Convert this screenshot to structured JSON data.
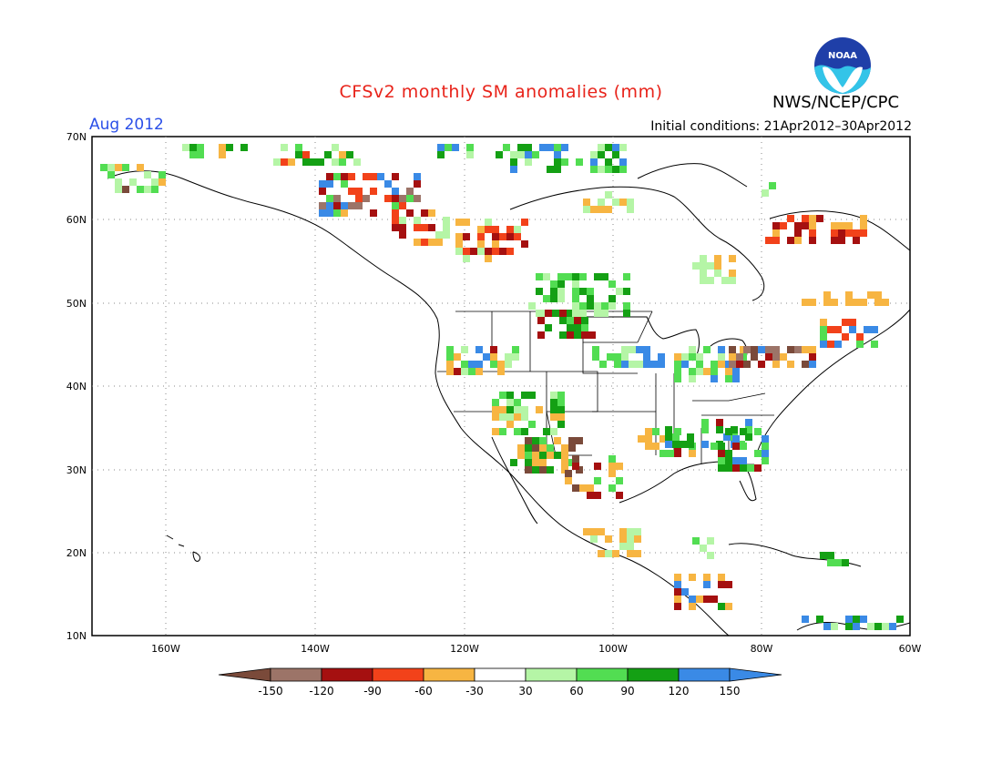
{
  "header": {
    "title": "CFSv2 monthly SM anomalies (mm)",
    "period": "Aug 2012",
    "initial_conditions": "Initial conditions: 21Apr2012–30Apr2012",
    "agency": "NWS/NCEP/CPC",
    "logo_text": "NOAA"
  },
  "map": {
    "lat_labels": [
      "70N",
      "60N",
      "50N",
      "40N",
      "30N",
      "20N",
      "10N"
    ],
    "lon_labels": [
      "160W",
      "140W",
      "120W",
      "100W",
      "80W",
      "60W"
    ]
  },
  "colorbar": {
    "levels": [
      "-150",
      "-120",
      "-90",
      "-60",
      "-30",
      "30",
      "60",
      "90",
      "120",
      "150"
    ],
    "colors": [
      "#7a4a3a",
      "#9c7468",
      "#a51010",
      "#f2421a",
      "#f7b542",
      "#ffffff",
      "#b5f5a6",
      "#52dd52",
      "#14a014",
      "#3a8ae6",
      "#3a8ae6"
    ]
  },
  "colors": {
    "title": "#e8231a",
    "period": "#2a4fe8",
    "wet": "#14a014",
    "dry": "#f7b542"
  }
}
